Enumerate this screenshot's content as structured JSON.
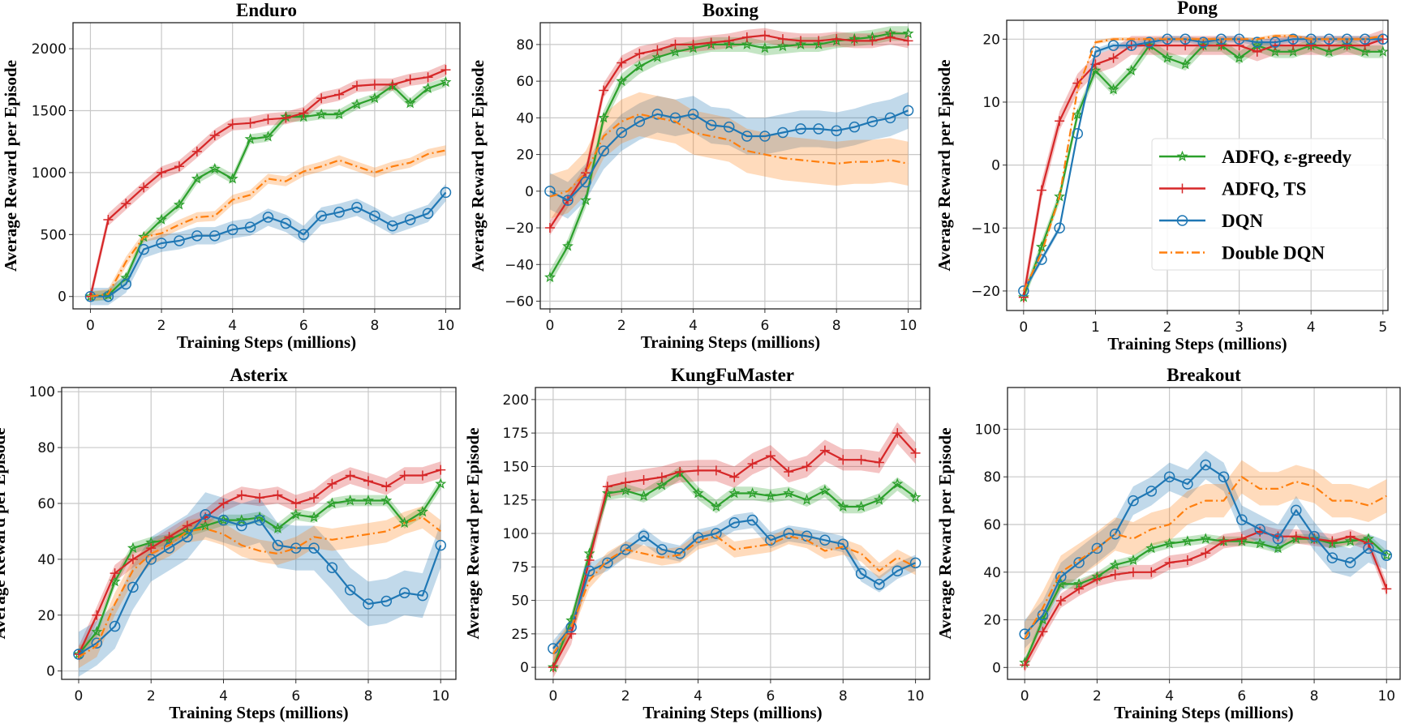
{
  "chart_data": [
    {
      "type": "line",
      "title": "Enduro",
      "xlabel": "Training Steps (millions)",
      "ylabel": "Average Reward per Episode",
      "xlim": [
        -0.49,
        10.4
      ],
      "ylim": [
        -100,
        2210
      ],
      "xticks": [
        0,
        2,
        4,
        6,
        8,
        10
      ],
      "yticks": [
        0,
        500,
        1000,
        1500,
        2000
      ],
      "grid": true,
      "x": [
        0,
        0.5,
        1,
        1.5,
        2,
        2.5,
        3,
        3.5,
        4,
        4.5,
        5,
        5.5,
        6,
        6.5,
        7,
        7.5,
        8,
        8.5,
        9,
        9.5,
        10
      ],
      "series": [
        {
          "name": "ADFQ, ε-greedy",
          "band": 40,
          "values": [
            0,
            10,
            150,
            480,
            620,
            740,
            950,
            1030,
            950,
            1270,
            1290,
            1450,
            1450,
            1470,
            1470,
            1550,
            1600,
            1700,
            1560,
            1680,
            1730
          ]
        },
        {
          "name": "ADFQ, TS",
          "band": 50,
          "values": [
            0,
            620,
            750,
            880,
            1000,
            1050,
            1170,
            1300,
            1390,
            1400,
            1430,
            1440,
            1480,
            1600,
            1630,
            1700,
            1710,
            1710,
            1750,
            1770,
            1830
          ]
        },
        {
          "name": "DQN",
          "band": 70,
          "values": [
            0,
            0,
            100,
            380,
            430,
            450,
            490,
            490,
            540,
            560,
            640,
            590,
            500,
            650,
            680,
            720,
            650,
            570,
            620,
            670,
            840
          ]
        },
        {
          "name": "Double DQN",
          "band": 40,
          "values": [
            0,
            20,
            280,
            480,
            510,
            580,
            640,
            650,
            780,
            820,
            950,
            930,
            1010,
            1050,
            1100,
            1050,
            1000,
            1050,
            1080,
            1150,
            1180
          ]
        }
      ]
    },
    {
      "type": "line",
      "title": "Boxing",
      "xlabel": "Training Steps (millions)",
      "ylabel": "Average Reward per Episode",
      "xlim": [
        -0.27,
        10.35
      ],
      "ylim": [
        -64.2,
        91.9
      ],
      "xticks": [
        0,
        2,
        4,
        6,
        8,
        10
      ],
      "yticks": [
        -60,
        -40,
        -20,
        0,
        20,
        40,
        60,
        80
      ],
      "grid": true,
      "x": [
        0,
        0.5,
        1,
        1.5,
        2,
        2.5,
        3,
        3.5,
        4,
        4.5,
        5,
        5.5,
        6,
        6.5,
        7,
        7.5,
        8,
        8.5,
        9,
        9.5,
        10
      ],
      "series": [
        {
          "name": "ADFQ, ε-greedy",
          "band": 4,
          "values": [
            -47,
            -30,
            -5,
            40,
            60,
            68,
            73,
            76,
            78,
            80,
            80,
            80,
            78,
            79,
            80,
            80,
            82,
            83,
            84,
            86,
            86
          ]
        },
        {
          "name": "ADFQ, TS",
          "band": 4,
          "values": [
            -20,
            -5,
            10,
            55,
            70,
            75,
            77,
            80,
            80,
            81,
            82,
            84,
            85,
            83,
            82,
            82,
            83,
            82,
            82,
            84,
            82
          ]
        },
        {
          "name": "DQN",
          "band": 10,
          "values": [
            0,
            -5,
            5,
            22,
            32,
            38,
            42,
            40,
            42,
            36,
            35,
            30,
            30,
            32,
            34,
            34,
            33,
            35,
            38,
            40,
            44
          ]
        },
        {
          "name": "Double DQN",
          "band": 12,
          "values": [
            -3,
            0,
            10,
            30,
            38,
            42,
            40,
            38,
            32,
            30,
            28,
            22,
            20,
            18,
            17,
            16,
            15,
            16,
            16,
            17,
            15
          ]
        }
      ]
    },
    {
      "type": "line",
      "title": "Pong",
      "xlabel": "Training Steps (millions)",
      "ylabel": "Average Reward per Episode",
      "xlim": [
        -0.235,
        5.07
      ],
      "ylim": [
        -23.1,
        23
      ],
      "xticks": [
        0,
        1,
        2,
        3,
        4,
        5
      ],
      "yticks": [
        -20,
        -10,
        0,
        10,
        20
      ],
      "grid": true,
      "legend": "center-right",
      "x": [
        0,
        0.25,
        0.5,
        0.75,
        1,
        1.25,
        1.5,
        1.75,
        2,
        2.25,
        2.5,
        2.75,
        3,
        3.25,
        3.5,
        3.75,
        4,
        4.25,
        4.5,
        4.75,
        5
      ],
      "series": [
        {
          "name": "ADFQ, ε-greedy",
          "band": 1,
          "values": [
            -21,
            -13,
            -5,
            8,
            15,
            12,
            15,
            19,
            17,
            16,
            19,
            19,
            17,
            19,
            18,
            18,
            19,
            18,
            19,
            18,
            18
          ]
        },
        {
          "name": "ADFQ, TS",
          "band": 1.5,
          "values": [
            -21,
            -4,
            7,
            13,
            16,
            17,
            19,
            19,
            19,
            19,
            19,
            19,
            19,
            18,
            19,
            19,
            19,
            19,
            19,
            19,
            20
          ]
        },
        {
          "name": "DQN",
          "band": 0.5,
          "values": [
            -20,
            -15,
            -10,
            5,
            18,
            19,
            19,
            19.5,
            20,
            20,
            19.5,
            20,
            20,
            19.5,
            19.5,
            20,
            20,
            20,
            20,
            20,
            20
          ]
        },
        {
          "name": "Double DQN",
          "band": 0.3,
          "values": [
            -20,
            -14,
            -5,
            12,
            19.5,
            20,
            20,
            20,
            20,
            20,
            20,
            20,
            20,
            20,
            20.5,
            20.5,
            20,
            20,
            20,
            20,
            20.5
          ]
        }
      ]
    },
    {
      "type": "line",
      "title": "Asterix",
      "xlabel": "Training Steps (millions)",
      "ylabel": "Average Reward per Episode",
      "xlim": [
        -0.47,
        10.42
      ],
      "ylim": [
        -3,
        101.5
      ],
      "xticks": [
        0,
        2,
        4,
        6,
        8,
        10
      ],
      "yticks": [
        0,
        20,
        40,
        60,
        80,
        100
      ],
      "grid": true,
      "x": [
        0,
        0.5,
        1,
        1.5,
        2,
        2.5,
        3,
        3.5,
        4,
        4.5,
        5,
        5.5,
        6,
        6.5,
        7,
        7.5,
        8,
        8.5,
        9,
        9.5,
        10
      ],
      "series": [
        {
          "name": "ADFQ, ε-greedy",
          "band": 2,
          "values": [
            6,
            14,
            32,
            44,
            46,
            47,
            50,
            52,
            54,
            54,
            55,
            51,
            56,
            55,
            60,
            61,
            61,
            61,
            53,
            57,
            67
          ]
        },
        {
          "name": "ADFQ, TS",
          "band": 3,
          "values": [
            6,
            20,
            35,
            40,
            44,
            48,
            52,
            55,
            60,
            63,
            62,
            63,
            60,
            62,
            67,
            70,
            68,
            66,
            70,
            70,
            72
          ]
        },
        {
          "name": "DQN",
          "band": 8,
          "values": [
            6,
            10,
            16,
            30,
            40,
            44,
            48,
            56,
            54,
            52,
            54,
            45,
            44,
            44,
            37,
            29,
            24,
            25,
            28,
            27,
            45
          ]
        },
        {
          "name": "Double DQN",
          "band": 4,
          "values": [
            5,
            9,
            24,
            36,
            42,
            45,
            50,
            51,
            49,
            45,
            43,
            42,
            44,
            48,
            47,
            48,
            49,
            50,
            53,
            55,
            50
          ]
        }
      ]
    },
    {
      "type": "line",
      "title": "KungFuMaster",
      "xlabel": "Training Steps (millions)",
      "ylabel": "Average Reward per Episode",
      "xlim": [
        -0.49,
        10.39
      ],
      "ylim": [
        -9,
        209
      ],
      "xticks": [
        0,
        2,
        4,
        6,
        8,
        10
      ],
      "yticks": [
        0,
        25,
        50,
        75,
        100,
        125,
        150,
        175,
        200
      ],
      "grid": true,
      "x": [
        0,
        0.5,
        1,
        1.5,
        2,
        2.5,
        3,
        3.5,
        4,
        4.5,
        5,
        5.5,
        6,
        6.5,
        7,
        7.5,
        8,
        8.5,
        9,
        9.5,
        10
      ],
      "series": [
        {
          "name": "ADFQ, ε-greedy",
          "band": 5,
          "values": [
            0,
            35,
            85,
            130,
            132,
            128,
            136,
            145,
            130,
            120,
            130,
            130,
            128,
            130,
            125,
            132,
            120,
            120,
            125,
            137,
            127
          ]
        },
        {
          "name": "ADFQ, TS",
          "band": 8,
          "values": [
            0,
            25,
            80,
            135,
            138,
            140,
            142,
            146,
            147,
            147,
            142,
            152,
            158,
            146,
            150,
            162,
            155,
            155,
            153,
            175,
            160
          ]
        },
        {
          "name": "DQN",
          "band": 6,
          "values": [
            14,
            30,
            72,
            78,
            88,
            98,
            88,
            85,
            97,
            100,
            108,
            110,
            95,
            100,
            98,
            95,
            92,
            70,
            62,
            72,
            78
          ]
        },
        {
          "name": "Double DQN",
          "band": 6,
          "values": [
            10,
            30,
            65,
            80,
            88,
            85,
            82,
            84,
            94,
            98,
            88,
            90,
            92,
            98,
            95,
            87,
            90,
            85,
            72,
            82,
            75
          ]
        }
      ]
    },
    {
      "type": "line",
      "title": "Breakout",
      "xlabel": "Training Steps (millions)",
      "ylabel": "Average Reward per Episode",
      "xlim": [
        -0.475,
        10.375
      ],
      "ylim": [
        -5,
        117.5
      ],
      "xticks": [
        0,
        2,
        4,
        6,
        8,
        10
      ],
      "yticks": [
        0,
        20,
        40,
        60,
        80,
        100
      ],
      "grid": true,
      "x": [
        0,
        0.5,
        1,
        1.5,
        2,
        2.5,
        3,
        3.5,
        4,
        4.5,
        5,
        5.5,
        6,
        6.5,
        7,
        7.5,
        8,
        8.5,
        9,
        9.5,
        10
      ],
      "series": [
        {
          "name": "ADFQ, ε-greedy",
          "band": 2,
          "values": [
            2,
            20,
            35,
            35,
            38,
            43,
            45,
            50,
            52,
            53,
            54,
            53,
            53,
            52,
            50,
            54,
            54,
            52,
            53,
            54,
            47
          ]
        },
        {
          "name": "ADFQ, TS",
          "band": 3,
          "values": [
            1,
            15,
            28,
            33,
            37,
            39,
            40,
            40,
            44,
            45,
            48,
            53,
            54,
            57,
            55,
            55,
            54,
            53,
            55,
            52,
            33
          ]
        },
        {
          "name": "DQN",
          "band": 6,
          "values": [
            14,
            22,
            38,
            44,
            50,
            56,
            70,
            74,
            80,
            77,
            85,
            80,
            62,
            58,
            54,
            66,
            55,
            46,
            44,
            50,
            47
          ]
        },
        {
          "name": "Double DQN",
          "band": 7,
          "values": [
            12,
            25,
            40,
            45,
            50,
            56,
            54,
            58,
            60,
            67,
            70,
            70,
            80,
            75,
            75,
            78,
            76,
            70,
            70,
            68,
            72
          ]
        }
      ]
    }
  ],
  "legend": {
    "entries": [
      {
        "label": "ADFQ, ε-greedy",
        "marker": "star",
        "line": "solid"
      },
      {
        "label": "ADFQ, TS",
        "marker": "plus",
        "line": "solid"
      },
      {
        "label": "DQN",
        "marker": "circle",
        "line": "solid"
      },
      {
        "label": "Double DQN",
        "marker": "none",
        "line": "dash-dot"
      }
    ]
  },
  "colors": {
    "ADFQ, ε-greedy": "#2ca02c",
    "ADFQ, TS": "#d62728",
    "DQN": "#1f77b4",
    "Double DQN": "#ff7f0e"
  }
}
